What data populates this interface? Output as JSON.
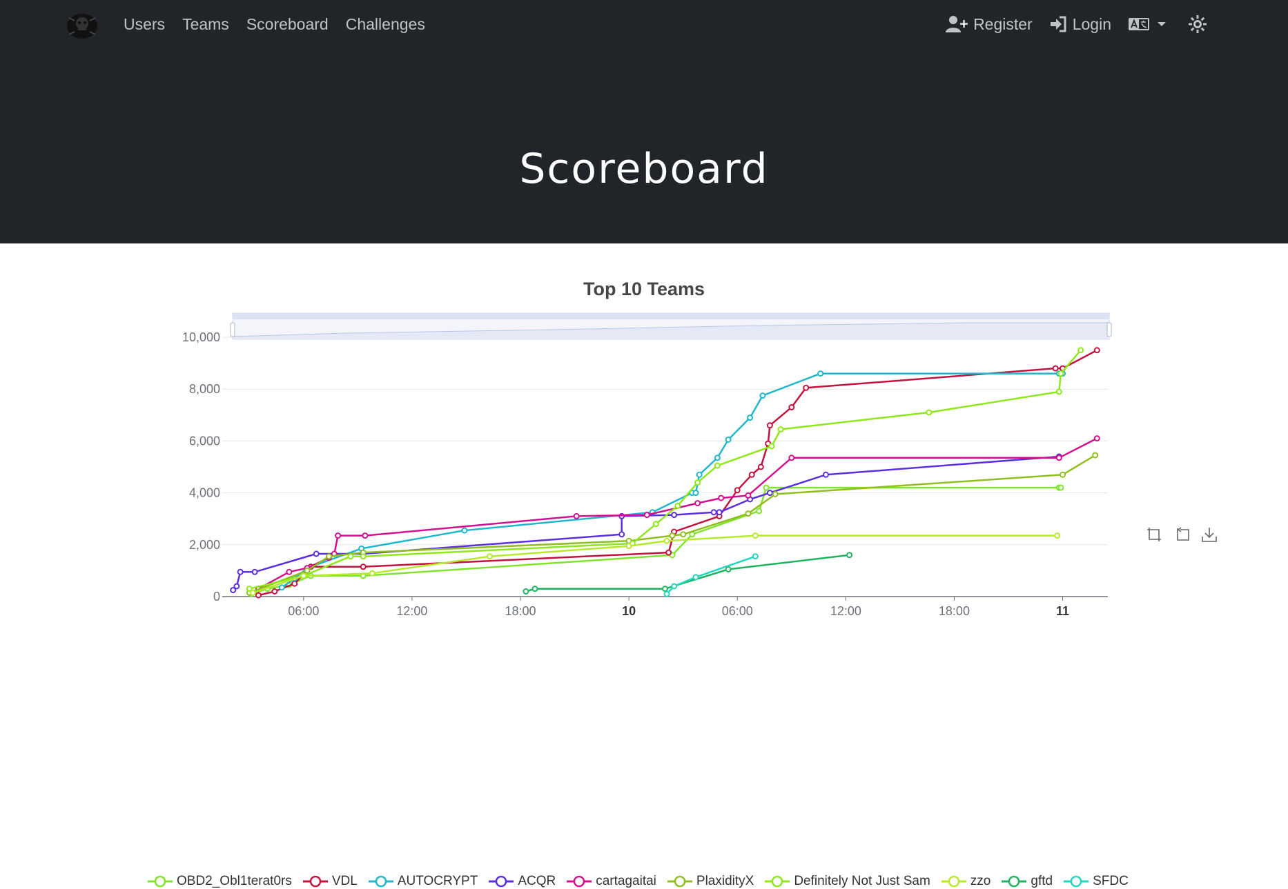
{
  "nav": {
    "links": [
      "Users",
      "Teams",
      "Scoreboard",
      "Challenges"
    ],
    "register": "Register",
    "login": "Login"
  },
  "page": {
    "title": "Scoreboard"
  },
  "chart_data": {
    "type": "line",
    "title": "Top 10 Teams",
    "xlabel": "",
    "ylabel": "",
    "ylim": [
      0,
      10000
    ],
    "yticks": [
      "0",
      "2,000",
      "4,000",
      "6,000",
      "8,000",
      "10,000"
    ],
    "xticks": [
      {
        "t": 6,
        "label": "06:00",
        "bold": false
      },
      {
        "t": 12,
        "label": "12:00",
        "bold": false
      },
      {
        "t": 18,
        "label": "18:00",
        "bold": false
      },
      {
        "t": 24,
        "label": "10",
        "bold": true
      },
      {
        "t": 30,
        "label": "06:00",
        "bold": false
      },
      {
        "t": 36,
        "label": "12:00",
        "bold": false
      },
      {
        "t": 42,
        "label": "18:00",
        "bold": false
      },
      {
        "t": 48,
        "label": "11",
        "bold": true
      }
    ],
    "grid": true,
    "legend_position": "bottom",
    "series": [
      {
        "name": "OBD2_Obl1terat0rs",
        "color": "#7fe52a",
        "points": [
          [
            3.1,
            100
          ],
          [
            4.0,
            300
          ],
          [
            5.2,
            450
          ],
          [
            6.4,
            800
          ],
          [
            9.3,
            800
          ],
          [
            26.4,
            1600
          ],
          [
            27.5,
            2400
          ],
          [
            31.2,
            3300
          ],
          [
            31.6,
            4200
          ],
          [
            47.8,
            4200
          ],
          [
            47.9,
            4200
          ]
        ]
      },
      {
        "name": "VDL",
        "color": "#c4123f",
        "points": [
          [
            3.5,
            50
          ],
          [
            4.4,
            200
          ],
          [
            5.5,
            500
          ],
          [
            6.4,
            1150
          ],
          [
            9.3,
            1150
          ],
          [
            26.2,
            1700
          ],
          [
            26.5,
            2500
          ],
          [
            29.0,
            3100
          ],
          [
            30.0,
            4100
          ],
          [
            30.8,
            4700
          ],
          [
            31.3,
            5000
          ],
          [
            31.7,
            5900
          ],
          [
            31.8,
            6600
          ],
          [
            33.0,
            7300
          ],
          [
            33.8,
            8050
          ],
          [
            47.6,
            8800
          ],
          [
            48.0,
            8800
          ],
          [
            49.9,
            9500
          ]
        ]
      },
      {
        "name": "AUTOCRYPT",
        "color": "#20b7cc",
        "points": [
          [
            4.8,
            350
          ],
          [
            5.5,
            700
          ],
          [
            6.2,
            1100
          ],
          [
            9.2,
            1850
          ],
          [
            14.9,
            2550
          ],
          [
            25.3,
            3250
          ],
          [
            27.5,
            4000
          ],
          [
            27.7,
            4000
          ],
          [
            27.9,
            4700
          ],
          [
            28.9,
            5350
          ],
          [
            29.5,
            6050
          ],
          [
            30.7,
            6900
          ],
          [
            31.4,
            7750
          ],
          [
            34.6,
            8600
          ],
          [
            47.8,
            8600
          ],
          [
            48.0,
            8600
          ]
        ]
      },
      {
        "name": "ACQR",
        "color": "#5b2ee0",
        "points": [
          [
            2.1,
            250
          ],
          [
            2.3,
            400
          ],
          [
            2.5,
            950
          ],
          [
            3.3,
            950
          ],
          [
            6.7,
            1650
          ],
          [
            9.3,
            1650
          ],
          [
            23.6,
            2400
          ],
          [
            23.6,
            3100
          ],
          [
            26.5,
            3150
          ],
          [
            28.7,
            3250
          ],
          [
            29.0,
            3250
          ],
          [
            30.7,
            3750
          ],
          [
            31.8,
            4000
          ],
          [
            34.9,
            4700
          ],
          [
            47.8,
            5400
          ]
        ]
      },
      {
        "name": "cartagaitai",
        "color": "#d41090",
        "points": [
          [
            3.5,
            300
          ],
          [
            5.2,
            950
          ],
          [
            6.2,
            1100
          ],
          [
            7.4,
            1500
          ],
          [
            7.7,
            1650
          ],
          [
            7.9,
            2350
          ],
          [
            9.4,
            2350
          ],
          [
            21.1,
            3100
          ],
          [
            25.0,
            3150
          ],
          [
            27.8,
            3600
          ],
          [
            29.1,
            3800
          ],
          [
            30.6,
            3900
          ],
          [
            33.0,
            5350
          ],
          [
            47.8,
            5350
          ],
          [
            49.9,
            6100
          ]
        ]
      },
      {
        "name": "PlaxidityX",
        "color": "#8fbe1e",
        "points": [
          [
            3.0,
            150
          ],
          [
            6.2,
            1000
          ],
          [
            7.4,
            1550
          ],
          [
            9.3,
            1700
          ],
          [
            24.0,
            2150
          ],
          [
            26.4,
            2350
          ],
          [
            27.0,
            2400
          ],
          [
            30.6,
            3200
          ],
          [
            32.1,
            3950
          ],
          [
            48.0,
            4700
          ],
          [
            49.8,
            5450
          ]
        ]
      },
      {
        "name": "Definitely Not Just Sam",
        "color": "#8ee81a",
        "points": [
          [
            3.0,
            300
          ],
          [
            6.0,
            800
          ],
          [
            8.6,
            1550
          ],
          [
            9.3,
            1550
          ],
          [
            24.2,
            2050
          ],
          [
            25.5,
            2800
          ],
          [
            26.7,
            3500
          ],
          [
            27.8,
            4400
          ],
          [
            28.9,
            5050
          ],
          [
            31.9,
            5800
          ],
          [
            32.4,
            6450
          ],
          [
            40.6,
            7100
          ],
          [
            47.8,
            7900
          ],
          [
            47.9,
            8600
          ],
          [
            49.0,
            9500
          ]
        ]
      },
      {
        "name": "zzo",
        "color": "#b6ea2a",
        "points": [
          [
            3.2,
            150
          ],
          [
            6.0,
            800
          ],
          [
            9.8,
            900
          ],
          [
            16.3,
            1550
          ],
          [
            24.0,
            1950
          ],
          [
            26.1,
            2150
          ],
          [
            31.0,
            2350
          ],
          [
            47.7,
            2350
          ]
        ]
      },
      {
        "name": "gftd",
        "color": "#1eb45f",
        "points": [
          [
            18.3,
            200
          ],
          [
            18.8,
            300
          ],
          [
            26.0,
            300
          ],
          [
            29.5,
            1050
          ],
          [
            36.2,
            1600
          ]
        ]
      },
      {
        "name": "SFDC",
        "color": "#22d6c0",
        "points": [
          [
            26.1,
            100
          ],
          [
            26.5,
            400
          ],
          [
            27.7,
            750
          ],
          [
            31.0,
            1550
          ]
        ]
      }
    ]
  }
}
